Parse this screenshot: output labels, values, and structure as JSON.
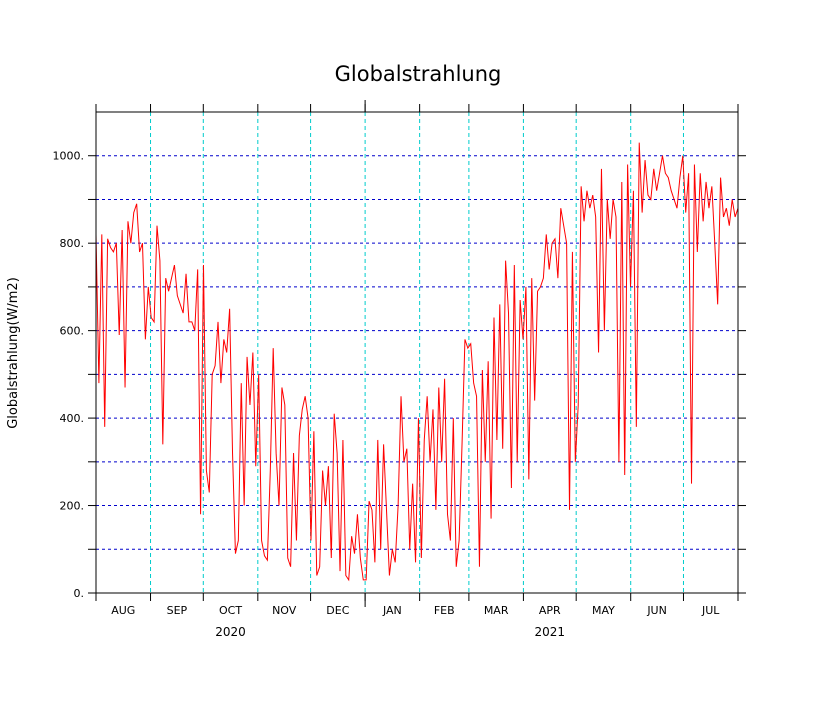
{
  "chart_data": {
    "type": "line",
    "title": "Globalstrahlung",
    "ylabel": "Globalstrahlung(W/m2)",
    "xlabel": "",
    "ylim": [
      0,
      1100
    ],
    "yticks": [
      0,
      100,
      200,
      300,
      400,
      500,
      600,
      700,
      800,
      900,
      1000
    ],
    "ytick_labels": [
      "0.",
      "",
      "200.",
      "",
      "400.",
      "",
      "600.",
      "",
      "800.",
      "",
      "1000."
    ],
    "month_labels": [
      "AUG",
      "SEP",
      "OCT",
      "NOV",
      "DEC",
      "JAN",
      "FEB",
      "MAR",
      "APR",
      "MAY",
      "JUN",
      "JUL"
    ],
    "year_labels": [
      {
        "text": "2020",
        "month_index": 2
      },
      {
        "text": "2021",
        "month_index": 8
      }
    ],
    "month_days": [
      31,
      30,
      31,
      30,
      31,
      31,
      28,
      31,
      30,
      31,
      30,
      31
    ],
    "grid": {
      "horizontal": "dashed-blue",
      "vertical": "dashed-cyan"
    },
    "colors": {
      "series": "#ff0000",
      "hgrid": "#0000cc",
      "vgrid": "#00cccc",
      "axis": "#000000"
    },
    "series": [
      {
        "x_unit": "month",
        "values": [
          [
            0.0,
            820
          ],
          [
            0.4,
            480
          ],
          [
            0.8,
            820
          ],
          [
            1.2,
            380
          ],
          [
            1.6,
            810
          ],
          [
            2.0,
            790
          ],
          [
            2.4,
            780
          ],
          [
            2.8,
            800
          ],
          [
            3.2,
            590
          ],
          [
            3.6,
            830
          ],
          [
            4.0,
            470
          ],
          [
            4.4,
            850
          ],
          [
            4.8,
            800
          ],
          [
            5.2,
            870
          ],
          [
            5.6,
            890
          ],
          [
            6.0,
            780
          ],
          [
            6.4,
            800
          ],
          [
            6.8,
            580
          ],
          [
            7.2,
            700
          ],
          [
            7.6,
            630
          ],
          [
            8.0,
            620
          ],
          [
            8.4,
            840
          ],
          [
            8.8,
            760
          ],
          [
            9.2,
            340
          ],
          [
            9.6,
            720
          ],
          [
            10.0,
            690
          ],
          [
            10.4,
            720
          ],
          [
            10.8,
            750
          ],
          [
            11.2,
            680
          ],
          [
            11.6,
            660
          ],
          [
            12.0,
            640
          ],
          [
            12.4,
            730
          ],
          [
            12.8,
            620
          ],
          [
            13.2,
            620
          ],
          [
            13.6,
            600
          ],
          [
            14.0,
            740
          ],
          [
            14.4,
            180
          ],
          [
            14.8,
            750
          ],
          [
            15.2,
            280
          ],
          [
            15.6,
            230
          ],
          [
            16.0,
            500
          ],
          [
            16.4,
            520
          ],
          [
            16.8,
            620
          ],
          [
            17.2,
            480
          ],
          [
            17.6,
            580
          ],
          [
            18.0,
            550
          ],
          [
            18.4,
            650
          ],
          [
            18.8,
            320
          ],
          [
            19.2,
            90
          ],
          [
            19.6,
            120
          ],
          [
            20.0,
            480
          ],
          [
            20.4,
            200
          ],
          [
            20.8,
            540
          ],
          [
            21.2,
            430
          ],
          [
            21.6,
            550
          ],
          [
            22.0,
            290
          ],
          [
            22.4,
            500
          ],
          [
            22.8,
            120
          ],
          [
            23.2,
            85
          ],
          [
            23.6,
            75
          ],
          [
            24.0,
            280
          ],
          [
            24.4,
            560
          ],
          [
            24.8,
            320
          ],
          [
            25.2,
            200
          ],
          [
            25.6,
            470
          ],
          [
            26.0,
            430
          ],
          [
            26.4,
            80
          ],
          [
            26.8,
            60
          ],
          [
            27.2,
            320
          ],
          [
            27.6,
            120
          ],
          [
            28.0,
            360
          ],
          [
            28.4,
            420
          ],
          [
            28.8,
            450
          ],
          [
            29.2,
            400
          ],
          [
            29.6,
            120
          ],
          [
            30.0,
            370
          ],
          [
            30.4,
            40
          ],
          [
            30.8,
            60
          ],
          [
            31.2,
            280
          ],
          [
            31.6,
            200
          ],
          [
            32.0,
            290
          ],
          [
            32.4,
            80
          ],
          [
            32.8,
            410
          ],
          [
            33.2,
            320
          ],
          [
            33.6,
            50
          ],
          [
            34.0,
            350
          ],
          [
            34.4,
            40
          ],
          [
            34.8,
            30
          ],
          [
            35.2,
            130
          ],
          [
            35.6,
            90
          ],
          [
            36.0,
            180
          ],
          [
            36.4,
            80
          ],
          [
            36.8,
            30
          ],
          [
            37.2,
            30
          ],
          [
            37.6,
            210
          ],
          [
            38.0,
            190
          ],
          [
            38.4,
            70
          ],
          [
            38.8,
            350
          ],
          [
            39.2,
            100
          ],
          [
            39.6,
            340
          ],
          [
            40.0,
            190
          ],
          [
            40.4,
            40
          ],
          [
            40.8,
            100
          ],
          [
            41.2,
            70
          ],
          [
            41.6,
            200
          ],
          [
            42.0,
            450
          ],
          [
            42.4,
            300
          ],
          [
            42.8,
            330
          ],
          [
            43.2,
            100
          ],
          [
            43.6,
            250
          ],
          [
            44.0,
            70
          ],
          [
            44.4,
            400
          ],
          [
            44.8,
            80
          ],
          [
            45.2,
            350
          ],
          [
            45.6,
            450
          ],
          [
            46.0,
            300
          ],
          [
            46.4,
            420
          ],
          [
            46.8,
            190
          ],
          [
            47.2,
            470
          ],
          [
            47.6,
            300
          ],
          [
            48.0,
            490
          ],
          [
            48.4,
            180
          ],
          [
            48.8,
            120
          ],
          [
            49.2,
            400
          ],
          [
            49.6,
            60
          ],
          [
            50.0,
            120
          ],
          [
            50.4,
            340
          ],
          [
            50.8,
            580
          ],
          [
            51.2,
            560
          ],
          [
            51.6,
            570
          ],
          [
            52.0,
            480
          ],
          [
            52.4,
            450
          ],
          [
            52.8,
            60
          ],
          [
            53.2,
            510
          ],
          [
            53.6,
            300
          ],
          [
            54.0,
            530
          ],
          [
            54.4,
            170
          ],
          [
            54.8,
            630
          ],
          [
            55.2,
            350
          ],
          [
            55.6,
            660
          ],
          [
            56.0,
            330
          ],
          [
            56.4,
            760
          ],
          [
            56.8,
            640
          ],
          [
            57.2,
            240
          ],
          [
            57.6,
            750
          ],
          [
            58.0,
            300
          ],
          [
            58.4,
            670
          ],
          [
            58.8,
            580
          ],
          [
            59.2,
            700
          ],
          [
            59.6,
            260
          ],
          [
            60.0,
            720
          ],
          [
            60.4,
            440
          ],
          [
            60.8,
            690
          ],
          [
            61.2,
            700
          ],
          [
            61.6,
            720
          ],
          [
            62.0,
            820
          ],
          [
            62.4,
            740
          ],
          [
            62.8,
            800
          ],
          [
            63.2,
            810
          ],
          [
            63.6,
            720
          ],
          [
            64.0,
            880
          ],
          [
            64.4,
            840
          ],
          [
            64.8,
            800
          ],
          [
            65.2,
            190
          ],
          [
            65.6,
            780
          ],
          [
            66.0,
            300
          ],
          [
            66.4,
            430
          ],
          [
            66.8,
            930
          ],
          [
            67.2,
            850
          ],
          [
            67.6,
            920
          ],
          [
            68.0,
            880
          ],
          [
            68.4,
            910
          ],
          [
            68.8,
            860
          ],
          [
            69.2,
            550
          ],
          [
            69.6,
            970
          ],
          [
            70.0,
            600
          ],
          [
            70.4,
            900
          ],
          [
            70.8,
            810
          ],
          [
            71.2,
            900
          ],
          [
            71.6,
            860
          ],
          [
            72.0,
            300
          ],
          [
            72.4,
            940
          ],
          [
            72.8,
            270
          ],
          [
            73.2,
            980
          ],
          [
            73.6,
            700
          ],
          [
            74.0,
            920
          ],
          [
            74.4,
            380
          ],
          [
            74.8,
            1030
          ],
          [
            75.2,
            870
          ],
          [
            75.6,
            990
          ],
          [
            76.0,
            910
          ],
          [
            76.4,
            900
          ],
          [
            76.8,
            970
          ],
          [
            77.2,
            920
          ],
          [
            77.6,
            960
          ],
          [
            78.0,
            1000
          ],
          [
            78.4,
            960
          ],
          [
            78.8,
            950
          ],
          [
            79.2,
            920
          ],
          [
            79.6,
            900
          ],
          [
            80.0,
            880
          ],
          [
            80.4,
            950
          ],
          [
            80.8,
            1000
          ],
          [
            81.2,
            870
          ],
          [
            81.6,
            960
          ],
          [
            82.0,
            250
          ],
          [
            82.4,
            980
          ],
          [
            82.8,
            780
          ],
          [
            83.2,
            960
          ],
          [
            83.6,
            850
          ],
          [
            84.0,
            940
          ],
          [
            84.4,
            880
          ],
          [
            84.8,
            930
          ],
          [
            85.2,
            800
          ],
          [
            85.6,
            660
          ],
          [
            86.0,
            950
          ],
          [
            86.4,
            860
          ],
          [
            86.8,
            880
          ],
          [
            87.2,
            840
          ],
          [
            87.6,
            900
          ],
          [
            88.0,
            860
          ],
          [
            88.4,
            880
          ]
        ]
      }
    ]
  }
}
